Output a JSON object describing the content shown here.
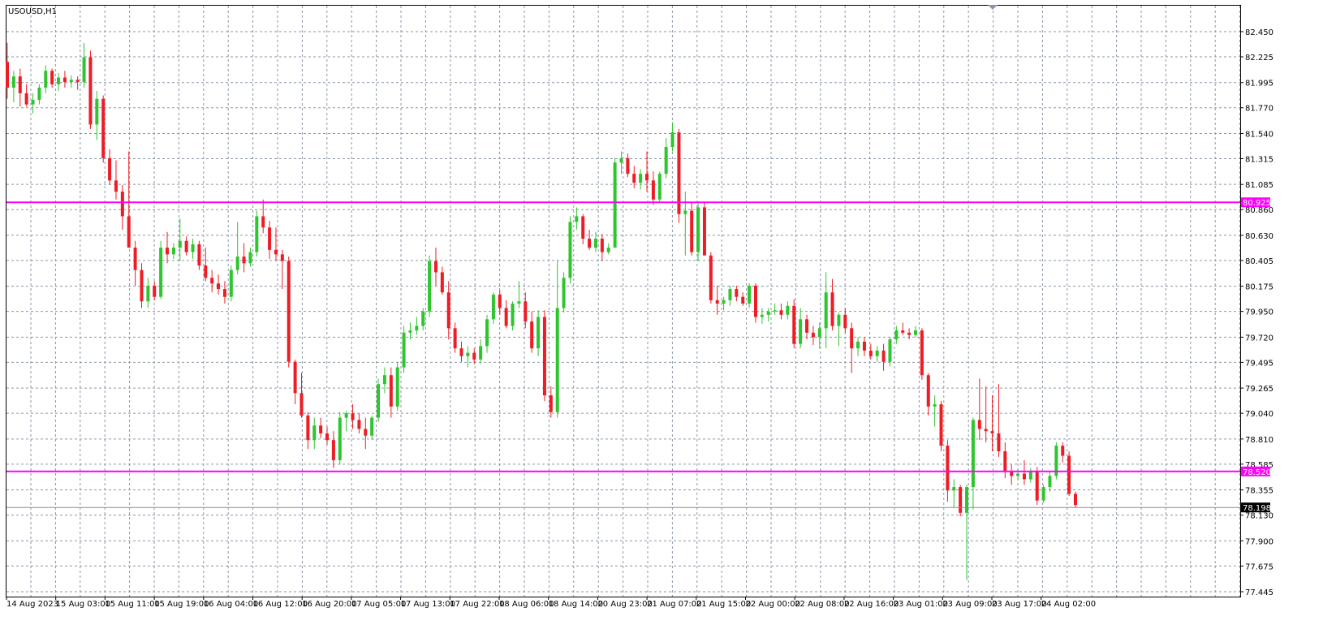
{
  "window": {
    "symbol_label": "USOUSD,H1"
  },
  "colors": {
    "background": "#ffffff",
    "grid": "#8a96a8",
    "bull": "#2ec52e",
    "bear": "#ee1c24",
    "hline": "#ff00ff",
    "bid_line": "#8c8c8c",
    "axis_text": "#000000"
  },
  "chart_data": {
    "type": "candlestick",
    "title": "USOUSD,H1",
    "ylim": [
      77.445,
      82.45
    ],
    "y_ticks": [
      "82.450",
      "82.225",
      "81.995",
      "81.770",
      "81.540",
      "81.315",
      "81.085",
      "80.860",
      "80.630",
      "80.405",
      "80.175",
      "79.950",
      "79.720",
      "79.495",
      "79.265",
      "79.040",
      "78.810",
      "78.585",
      "78.355",
      "78.130",
      "77.900",
      "77.675",
      "77.445"
    ],
    "x_ticks": [
      "14 Aug 2023",
      "15 Aug 03:00",
      "15 Aug 11:00",
      "15 Aug 19:00",
      "16 Aug 04:00",
      "16 Aug 12:00",
      "16 Aug 20:00",
      "17 Aug 05:00",
      "17 Aug 13:00",
      "17 Aug 22:00",
      "18 Aug 06:00",
      "18 Aug 14:00",
      "20 Aug 23:00",
      "21 Aug 07:00",
      "21 Aug 15:00",
      "22 Aug 00:00",
      "22 Aug 08:00",
      "22 Aug 16:00",
      "23 Aug 01:00",
      "23 Aug 09:00",
      "23 Aug 17:00",
      "24 Aug 02:00"
    ],
    "horizontal_lines": [
      {
        "price": 80.925,
        "label": "80.925"
      },
      {
        "price": 78.52,
        "label": "78.520"
      }
    ],
    "bid_line": {
      "price": 78.198,
      "label": "78.198"
    },
    "grid": true,
    "candles": [
      [
        82.18,
        82.35,
        81.85,
        81.95
      ],
      [
        81.95,
        82.1,
        81.82,
        82.05
      ],
      [
        82.05,
        82.12,
        81.78,
        81.9
      ],
      [
        81.9,
        81.98,
        81.78,
        81.8
      ],
      [
        81.8,
        81.9,
        81.72,
        81.84
      ],
      [
        81.84,
        81.98,
        81.8,
        81.95
      ],
      [
        81.95,
        82.15,
        81.9,
        82.1
      ],
      [
        82.1,
        82.12,
        81.95,
        81.98
      ],
      [
        81.98,
        82.08,
        81.92,
        82.04
      ],
      [
        82.04,
        82.1,
        81.95,
        82.0
      ],
      [
        82.0,
        82.06,
        81.95,
        82.02
      ],
      [
        82.02,
        82.05,
        81.93,
        82.0
      ],
      [
        82.0,
        82.35,
        81.95,
        82.22
      ],
      [
        82.22,
        82.28,
        81.58,
        81.62
      ],
      [
        81.62,
        81.92,
        81.48,
        81.85
      ],
      [
        81.85,
        81.88,
        81.28,
        81.32
      ],
      [
        81.32,
        81.4,
        81.08,
        81.12
      ],
      [
        81.12,
        81.3,
        80.95,
        81.02
      ],
      [
        81.02,
        81.08,
        80.68,
        80.8
      ],
      [
        80.8,
        81.38,
        80.52,
        80.52
      ],
      [
        80.52,
        80.58,
        80.18,
        80.32
      ],
      [
        80.32,
        80.38,
        79.98,
        80.04
      ],
      [
        80.04,
        80.25,
        79.98,
        80.18
      ],
      [
        80.18,
        80.22,
        80.05,
        80.08
      ],
      [
        80.08,
        80.58,
        80.06,
        80.52
      ],
      [
        80.52,
        80.66,
        80.38,
        80.46
      ],
      [
        80.46,
        80.56,
        80.42,
        80.52
      ],
      [
        80.52,
        80.78,
        80.4,
        80.58
      ],
      [
        80.58,
        80.62,
        80.45,
        80.48
      ],
      [
        80.48,
        80.6,
        80.42,
        80.55
      ],
      [
        80.55,
        80.58,
        80.32,
        80.36
      ],
      [
        80.36,
        80.52,
        80.22,
        80.25
      ],
      [
        80.25,
        80.32,
        80.12,
        80.2
      ],
      [
        80.2,
        80.28,
        80.1,
        80.15
      ],
      [
        80.15,
        80.22,
        80.02,
        80.08
      ],
      [
        80.08,
        80.36,
        80.04,
        80.32
      ],
      [
        80.32,
        80.75,
        80.28,
        80.44
      ],
      [
        80.44,
        80.56,
        80.3,
        80.38
      ],
      [
        80.38,
        80.52,
        80.35,
        80.48
      ],
      [
        80.48,
        80.85,
        80.44,
        80.8
      ],
      [
        80.8,
        80.95,
        80.65,
        80.7
      ],
      [
        80.7,
        80.76,
        80.42,
        80.5
      ],
      [
        80.5,
        80.7,
        80.4,
        80.46
      ],
      [
        80.46,
        80.5,
        80.15,
        80.4
      ],
      [
        80.4,
        80.44,
        79.45,
        79.5
      ],
      [
        79.5,
        79.52,
        79.12,
        79.22
      ],
      [
        79.22,
        79.4,
        79.0,
        79.02
      ],
      [
        79.02,
        79.05,
        78.72,
        78.8
      ],
      [
        78.8,
        79.0,
        78.72,
        78.93
      ],
      [
        78.93,
        79.0,
        78.82,
        78.86
      ],
      [
        78.86,
        78.92,
        78.76,
        78.8
      ],
      [
        78.8,
        78.88,
        78.55,
        78.62
      ],
      [
        78.62,
        79.05,
        78.58,
        79.0
      ],
      [
        79.0,
        79.06,
        78.88,
        79.04
      ],
      [
        79.04,
        79.12,
        78.9,
        78.98
      ],
      [
        78.98,
        79.04,
        78.86,
        78.9
      ],
      [
        78.9,
        79.0,
        78.72,
        78.84
      ],
      [
        78.84,
        79.02,
        78.8,
        79.0
      ],
      [
        79.0,
        79.35,
        78.96,
        79.3
      ],
      [
        79.3,
        79.45,
        79.22,
        79.38
      ],
      [
        79.38,
        79.45,
        79.0,
        79.1
      ],
      [
        79.1,
        79.5,
        79.06,
        79.45
      ],
      [
        79.45,
        79.82,
        79.4,
        79.76
      ],
      [
        79.76,
        79.85,
        79.7,
        79.78
      ],
      [
        79.78,
        79.9,
        79.74,
        79.82
      ],
      [
        79.82,
        79.98,
        79.78,
        79.95
      ],
      [
        79.95,
        80.45,
        79.9,
        80.4
      ],
      [
        80.4,
        80.52,
        80.18,
        80.3
      ],
      [
        80.3,
        80.35,
        80.1,
        80.12
      ],
      [
        80.12,
        80.22,
        79.7,
        79.8
      ],
      [
        79.8,
        79.85,
        79.58,
        79.62
      ],
      [
        79.62,
        79.68,
        79.5,
        79.55
      ],
      [
        79.55,
        79.64,
        79.45,
        79.58
      ],
      [
        79.58,
        79.62,
        79.48,
        79.52
      ],
      [
        79.52,
        79.7,
        79.48,
        79.64
      ],
      [
        79.64,
        79.92,
        79.58,
        79.88
      ],
      [
        79.88,
        80.12,
        79.84,
        80.1
      ],
      [
        80.1,
        80.14,
        79.92,
        79.98
      ],
      [
        79.98,
        80.05,
        79.8,
        79.82
      ],
      [
        79.82,
        80.04,
        79.78,
        80.02
      ],
      [
        80.02,
        80.22,
        79.98,
        80.04
      ],
      [
        80.04,
        80.12,
        79.8,
        79.86
      ],
      [
        79.86,
        79.95,
        79.58,
        79.62
      ],
      [
        79.62,
        79.96,
        79.55,
        79.9
      ],
      [
        79.9,
        79.96,
        79.15,
        79.2
      ],
      [
        79.2,
        79.28,
        79.0,
        79.05
      ],
      [
        79.05,
        80.4,
        79.0,
        79.98
      ],
      [
        79.98,
        80.3,
        79.94,
        80.25
      ],
      [
        80.25,
        80.8,
        80.2,
        80.75
      ],
      [
        80.75,
        80.88,
        80.68,
        80.8
      ],
      [
        80.8,
        80.82,
        80.55,
        80.6
      ],
      [
        80.6,
        80.68,
        80.5,
        80.52
      ],
      [
        80.52,
        80.66,
        80.48,
        80.6
      ],
      [
        80.6,
        80.64,
        80.4,
        80.48
      ],
      [
        80.48,
        80.56,
        80.46,
        80.52
      ],
      [
        80.52,
        81.32,
        80.52,
        81.28
      ],
      [
        81.28,
        81.38,
        81.18,
        81.32
      ],
      [
        81.32,
        81.36,
        81.15,
        81.18
      ],
      [
        81.18,
        81.25,
        81.05,
        81.1
      ],
      [
        81.1,
        81.22,
        81.04,
        81.18
      ],
      [
        81.18,
        81.38,
        81.02,
        81.12
      ],
      [
        81.12,
        81.2,
        80.9,
        80.95
      ],
      [
        80.95,
        81.2,
        80.92,
        81.18
      ],
      [
        81.18,
        81.5,
        81.14,
        81.42
      ],
      [
        81.42,
        81.64,
        81.38,
        81.55
      ],
      [
        81.55,
        81.58,
        80.74,
        80.82
      ],
      [
        80.82,
        81.02,
        80.45,
        80.85
      ],
      [
        80.85,
        80.92,
        80.45,
        80.48
      ],
      [
        80.48,
        80.92,
        80.4,
        80.88
      ],
      [
        80.88,
        80.92,
        80.48,
        80.45
      ],
      [
        80.45,
        80.48,
        80.02,
        80.05
      ],
      [
        80.05,
        80.18,
        79.92,
        80.02
      ],
      [
        80.02,
        80.08,
        79.96,
        80.05
      ],
      [
        80.05,
        80.18,
        80.0,
        80.15
      ],
      [
        80.15,
        80.18,
        80.04,
        80.08
      ],
      [
        80.08,
        80.12,
        80.0,
        80.02
      ],
      [
        80.02,
        80.2,
        79.98,
        80.18
      ],
      [
        80.18,
        80.2,
        79.85,
        79.9
      ],
      [
        79.9,
        79.98,
        79.84,
        79.92
      ],
      [
        79.92,
        79.98,
        79.86,
        79.95
      ],
      [
        79.95,
        80.02,
        79.92,
        79.96
      ],
      [
        79.96,
        80.02,
        79.88,
        79.92
      ],
      [
        79.92,
        80.04,
        79.88,
        80.0
      ],
      [
        80.0,
        80.06,
        79.62,
        79.66
      ],
      [
        79.66,
        79.98,
        79.62,
        79.88
      ],
      [
        79.88,
        79.92,
        79.7,
        79.76
      ],
      [
        79.76,
        79.82,
        79.65,
        79.72
      ],
      [
        79.72,
        79.85,
        79.62,
        79.8
      ],
      [
        79.8,
        80.3,
        79.62,
        80.12
      ],
      [
        80.12,
        80.24,
        79.78,
        79.82
      ],
      [
        79.82,
        79.94,
        79.64,
        79.92
      ],
      [
        79.92,
        79.98,
        79.76,
        79.8
      ],
      [
        79.8,
        79.85,
        79.4,
        79.62
      ],
      [
        79.62,
        79.72,
        79.55,
        79.68
      ],
      [
        79.68,
        79.72,
        79.55,
        79.6
      ],
      [
        79.6,
        79.66,
        79.52,
        79.55
      ],
      [
        79.55,
        79.64,
        79.5,
        79.6
      ],
      [
        79.6,
        79.66,
        79.42,
        79.5
      ],
      [
        79.5,
        79.72,
        79.46,
        79.7
      ],
      [
        79.7,
        79.82,
        79.66,
        79.78
      ],
      [
        79.78,
        79.85,
        79.74,
        79.76
      ],
      [
        79.76,
        79.8,
        79.7,
        79.74
      ],
      [
        79.74,
        79.82,
        79.72,
        79.78
      ],
      [
        79.78,
        79.8,
        79.34,
        79.38
      ],
      [
        79.38,
        79.4,
        79.02,
        79.1
      ],
      [
        79.1,
        79.2,
        78.92,
        79.12
      ],
      [
        79.12,
        79.15,
        78.7,
        78.75
      ],
      [
        78.75,
        78.8,
        78.25,
        78.35
      ],
      [
        78.35,
        78.45,
        78.2,
        78.38
      ],
      [
        78.38,
        78.4,
        78.12,
        78.15
      ],
      [
        78.15,
        78.4,
        77.55,
        78.38
      ],
      [
        78.38,
        79.0,
        78.18,
        78.98
      ],
      [
        78.98,
        79.35,
        78.8,
        78.9
      ],
      [
        78.9,
        79.28,
        78.78,
        78.88
      ],
      [
        78.88,
        79.2,
        78.7,
        78.86
      ],
      [
        78.86,
        79.3,
        78.65,
        78.7
      ],
      [
        78.7,
        78.78,
        78.46,
        78.52
      ],
      [
        78.52,
        78.58,
        78.4,
        78.48
      ],
      [
        78.48,
        78.54,
        78.44,
        78.5
      ],
      [
        78.5,
        78.62,
        78.4,
        78.45
      ],
      [
        78.45,
        78.55,
        78.42,
        78.52
      ],
      [
        78.52,
        78.56,
        78.22,
        78.26
      ],
      [
        78.26,
        78.4,
        78.24,
        78.38
      ],
      [
        78.38,
        78.52,
        78.34,
        78.48
      ],
      [
        78.48,
        78.78,
        78.45,
        78.75
      ],
      [
        78.75,
        78.78,
        78.6,
        78.66
      ],
      [
        78.66,
        78.7,
        78.3,
        78.32
      ],
      [
        78.32,
        78.34,
        78.2,
        78.22
      ]
    ]
  }
}
